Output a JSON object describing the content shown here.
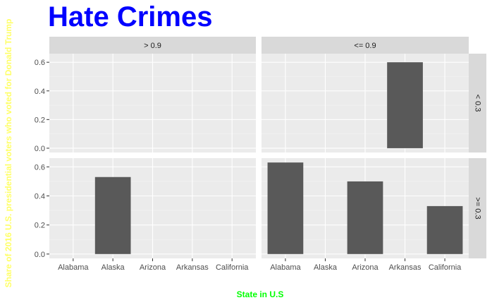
{
  "chart_data": {
    "type": "bar",
    "title": "Hate Crimes",
    "xlabel": "State in U.S",
    "ylabel": "Share of 2016 U.S. presidential voters who voted for Donald Trump",
    "categories": [
      "Alabama",
      "Alaska",
      "Arizona",
      "Arkansas",
      "California"
    ],
    "ylim": [
      -0.03,
      0.66
    ],
    "y_ticks": [
      0.0,
      0.2,
      0.4,
      0.6
    ],
    "y_tick_labels": [
      "0.0",
      "0.2",
      "0.4",
      "0.6"
    ],
    "grid": true,
    "facet_columns": [
      "> 0.9",
      "<= 0.9"
    ],
    "facet_rows": [
      "< 0.3",
      ">= 0.3"
    ],
    "panels": [
      {
        "column": "> 0.9",
        "row": "< 0.3",
        "values": [
          null,
          null,
          null,
          null,
          null
        ]
      },
      {
        "column": "<= 0.9",
        "row": "< 0.3",
        "values": [
          null,
          null,
          null,
          0.6,
          null
        ]
      },
      {
        "column": "> 0.9",
        "row": ">= 0.3",
        "values": [
          null,
          0.53,
          null,
          null,
          null
        ]
      },
      {
        "column": "<= 0.9",
        "row": ">= 0.3",
        "values": [
          0.63,
          null,
          0.5,
          null,
          0.33
        ]
      }
    ],
    "colors": {
      "bar": "#595959",
      "title": "#0000ff",
      "xlabel": "#00ff00",
      "ylabel": "#ffff66"
    }
  }
}
